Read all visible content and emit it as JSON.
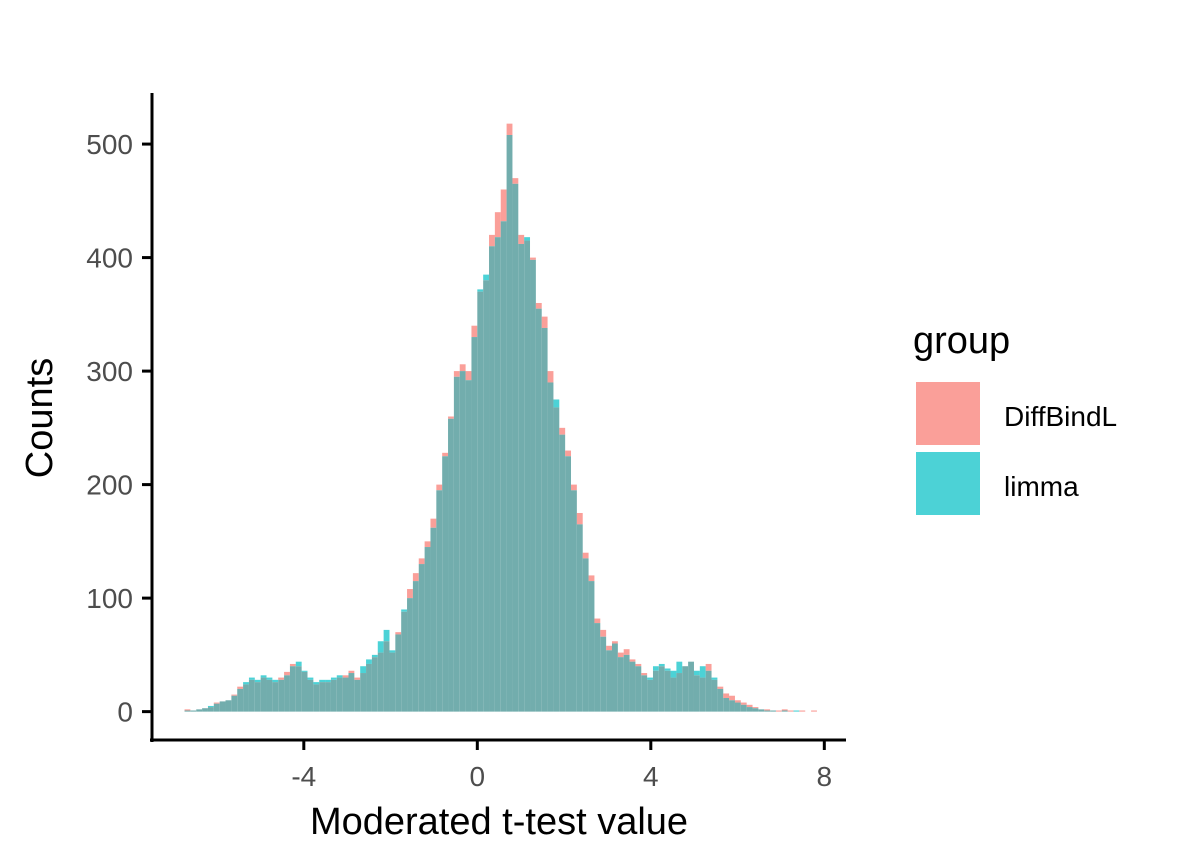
{
  "chart_data": {
    "type": "histogram",
    "xlabel": "Moderated t-test value",
    "ylabel": "Counts",
    "xlim": [
      -7.5,
      8.5
    ],
    "ylim": [
      -25,
      545
    ],
    "x_ticks": [
      -4,
      0,
      4,
      8
    ],
    "x_tick_labels": [
      "-4",
      "0",
      "4",
      "8"
    ],
    "y_ticks": [
      0,
      100,
      200,
      300,
      400,
      500
    ],
    "y_tick_labels": [
      "0",
      "100",
      "200",
      "300",
      "400",
      "500"
    ],
    "bin_start": -6.75,
    "bin_width": 0.135,
    "grid": false,
    "legend": {
      "title": "group",
      "position": "right"
    },
    "overlap_color": "#72adad",
    "series": [
      {
        "name": "DiffBindL",
        "color": "#F8766D",
        "counts": [
          2,
          1,
          2,
          3,
          4,
          8,
          9,
          10,
          15,
          22,
          24,
          28,
          26,
          30,
          28,
          26,
          30,
          35,
          42,
          40,
          35,
          28,
          24,
          26,
          26,
          28,
          30,
          32,
          36,
          30,
          34,
          42,
          48,
          52,
          62,
          52,
          70,
          88,
          108,
          122,
          135,
          150,
          170,
          200,
          228,
          260,
          300,
          306,
          300,
          340,
          370,
          380,
          420,
          440,
          460,
          518,
          470,
          420,
          415,
          400,
          360,
          348,
          300,
          268,
          250,
          230,
          200,
          175,
          140,
          120,
          82,
          72,
          58,
          62,
          52,
          55,
          46,
          42,
          34,
          28,
          36,
          40,
          36,
          30,
          34,
          40,
          44,
          32,
          30,
          42,
          28,
          22,
          16,
          14,
          10,
          8,
          6,
          4,
          2,
          2,
          1,
          1,
          2,
          1,
          0,
          1,
          0,
          1
        ]
      },
      {
        "name": "limma",
        "color": "#00BFC4",
        "counts": [
          1,
          1,
          2,
          3,
          5,
          7,
          9,
          10,
          14,
          20,
          26,
          30,
          28,
          32,
          30,
          28,
          28,
          32,
          40,
          44,
          36,
          30,
          26,
          28,
          28,
          30,
          32,
          30,
          34,
          28,
          40,
          46,
          50,
          62,
          72,
          54,
          68,
          90,
          100,
          115,
          130,
          145,
          162,
          195,
          225,
          258,
          295,
          300,
          292,
          330,
          372,
          385,
          410,
          418,
          432,
          508,
          465,
          412,
          418,
          398,
          355,
          338,
          290,
          275,
          244,
          225,
          195,
          165,
          135,
          115,
          78,
          66,
          54,
          60,
          48,
          50,
          44,
          40,
          32,
          30,
          40,
          42,
          38,
          36,
          44,
          40,
          44,
          36,
          40,
          36,
          30,
          20,
          12,
          10,
          8,
          6,
          4,
          3,
          2,
          1,
          1,
          0,
          1,
          0,
          1,
          0,
          0,
          0
        ]
      }
    ]
  }
}
